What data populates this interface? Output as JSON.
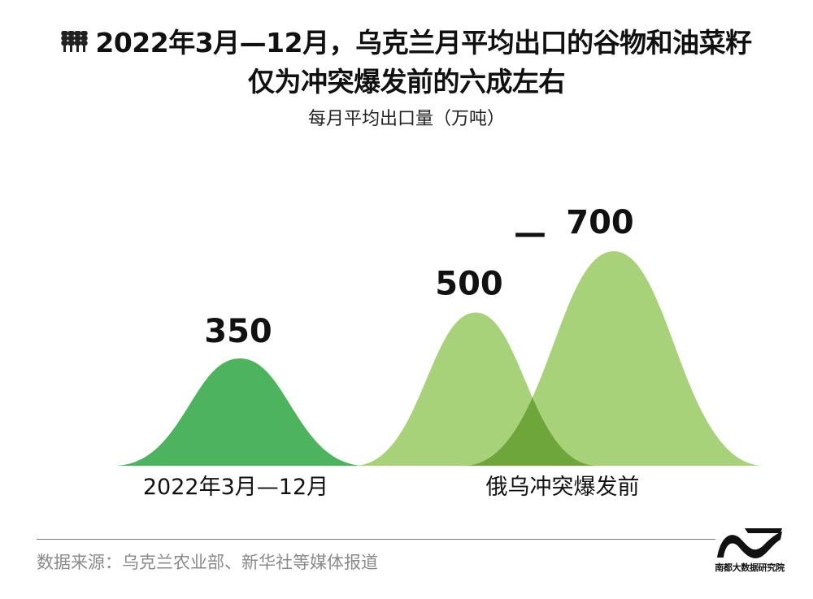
{
  "title_line1": "2022年3月—12月，乌克兰月平均出口的谷物和油菜籽",
  "title_line2": "仅为冲突爆发前的六成左右",
  "subtitle": "每月平均出口量（万吨）",
  "icon": "wheat-icon",
  "chart_data": {
    "type": "bar",
    "categories": [
      "2022年3月—12月",
      "俄乌冲突爆发前"
    ],
    "values": [
      350,
      [
        500,
        700
      ]
    ],
    "value_labels": [
      "350",
      "500",
      "700"
    ],
    "range_separator": "—",
    "colors": {
      "period1": "#4db35f",
      "prewar": "#a8d27a",
      "overlap": "#6fa63c"
    }
  },
  "source": "数据来源：乌克兰农业部、新华社等媒体报道",
  "brand_logo": "南都大数据研究院"
}
